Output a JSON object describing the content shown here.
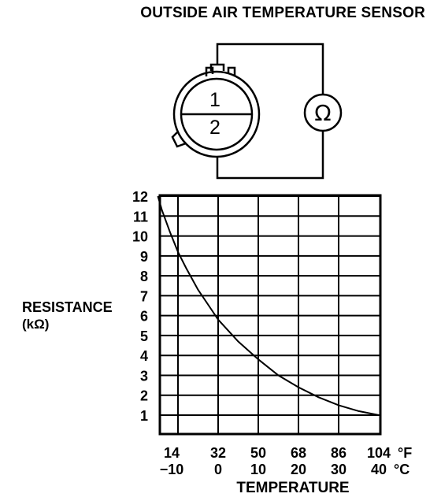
{
  "title": "OUTSIDE AIR TEMPERATURE SENSOR",
  "connector": {
    "terminal_1": "1",
    "terminal_2": "2"
  },
  "meter": {
    "symbol": "Ω"
  },
  "chart_data": {
    "type": "line",
    "ylabel": "RESISTANCE",
    "ylabel_unit": "(kΩ)",
    "xlabel": "TEMPERATURE",
    "x_ticks_f": [
      "14",
      "32",
      "50",
      "68",
      "86",
      "104"
    ],
    "x_unit_f": "°F",
    "x_ticks_c": [
      "−10",
      "0",
      "10",
      "20",
      "30",
      "40"
    ],
    "x_unit_c": "°C",
    "y_ticks": [
      "1",
      "2",
      "3",
      "4",
      "5",
      "6",
      "7",
      "8",
      "9",
      "10",
      "11",
      "12"
    ],
    "xlim": [
      -15,
      40
    ],
    "ylim": [
      0,
      12
    ],
    "grid": true,
    "series": [
      {
        "x": [
          -15,
          -14,
          -12,
          -10,
          -8,
          -5,
          -2,
          0,
          5,
          10,
          15,
          20,
          25,
          30,
          35,
          40
        ],
        "y": [
          12.0,
          11.3,
          10.2,
          9.2,
          8.4,
          7.3,
          6.4,
          5.8,
          4.7,
          3.8,
          3.0,
          2.4,
          1.9,
          1.5,
          1.2,
          1.0
        ]
      }
    ]
  }
}
